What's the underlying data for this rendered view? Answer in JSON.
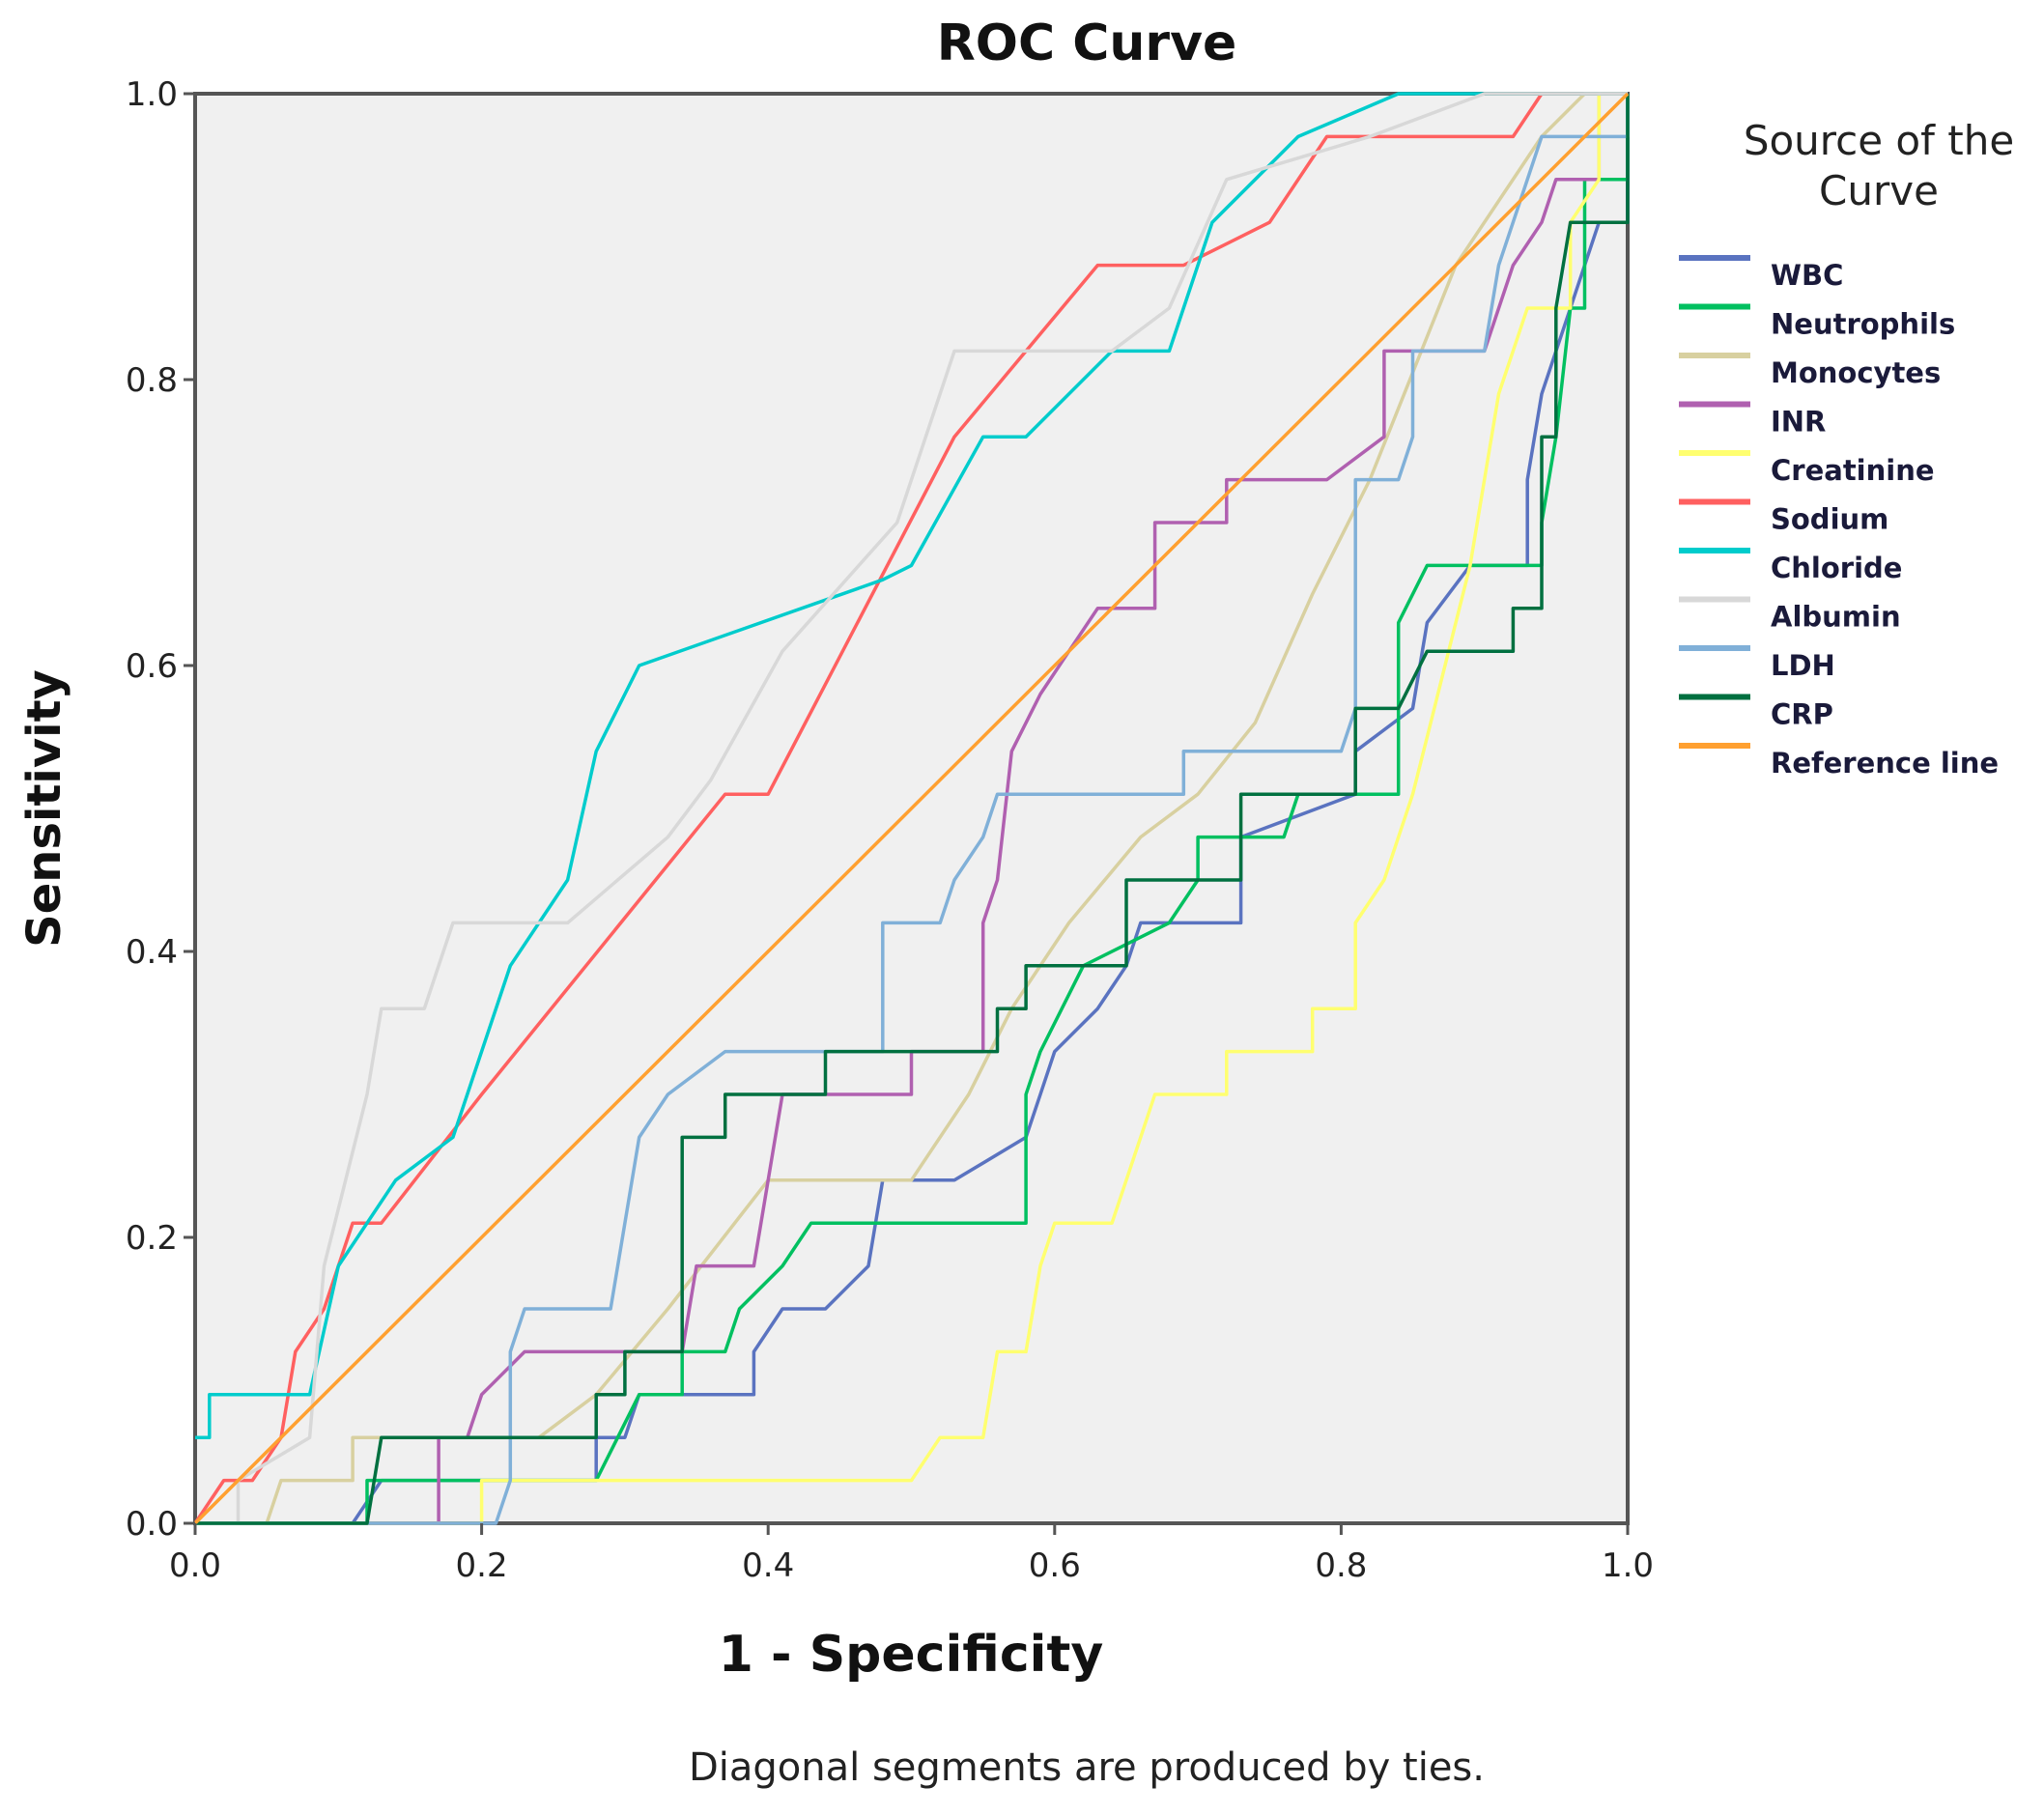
{
  "chart_data": {
    "type": "line",
    "title": "ROC Curve",
    "xlabel": "1 - Specificity",
    "ylabel": "Sensitivity",
    "xlim": [
      0,
      1
    ],
    "ylim": [
      0,
      1
    ],
    "xticks": [
      "0.0",
      "0.2",
      "0.4",
      "0.6",
      "0.8",
      "1.0"
    ],
    "yticks": [
      "0.0",
      "0.2",
      "0.4",
      "0.6",
      "0.8",
      "1.0"
    ],
    "grid": false,
    "legend_title": "Source of the Curve",
    "legend_position": "right",
    "footnote": "Diagonal segments are produced by ties.",
    "series": [
      {
        "name": "WBC",
        "color": "#5a73c0",
        "points": [
          [
            0,
            0
          ],
          [
            0.11,
            0
          ],
          [
            0.13,
            0.03
          ],
          [
            0.28,
            0.03
          ],
          [
            0.28,
            0.06
          ],
          [
            0.3,
            0.06
          ],
          [
            0.31,
            0.09
          ],
          [
            0.39,
            0.09
          ],
          [
            0.39,
            0.12
          ],
          [
            0.41,
            0.15
          ],
          [
            0.44,
            0.15
          ],
          [
            0.47,
            0.18
          ],
          [
            0.48,
            0.24
          ],
          [
            0.53,
            0.24
          ],
          [
            0.58,
            0.27
          ],
          [
            0.59,
            0.3
          ],
          [
            0.6,
            0.33
          ],
          [
            0.63,
            0.36
          ],
          [
            0.65,
            0.39
          ],
          [
            0.66,
            0.42
          ],
          [
            0.73,
            0.42
          ],
          [
            0.73,
            0.48
          ],
          [
            0.81,
            0.51
          ],
          [
            0.81,
            0.54
          ],
          [
            0.85,
            0.57
          ],
          [
            0.86,
            0.63
          ],
          [
            0.89,
            0.67
          ],
          [
            0.93,
            0.67
          ],
          [
            0.93,
            0.73
          ],
          [
            0.94,
            0.79
          ],
          [
            0.96,
            0.85
          ],
          [
            0.98,
            0.91
          ],
          [
            1,
            0.91
          ],
          [
            1,
            1
          ]
        ]
      },
      {
        "name": "Neutrophils",
        "color": "#00c060",
        "points": [
          [
            0,
            0
          ],
          [
            0.12,
            0
          ],
          [
            0.12,
            0.03
          ],
          [
            0.28,
            0.03
          ],
          [
            0.31,
            0.09
          ],
          [
            0.34,
            0.09
          ],
          [
            0.34,
            0.12
          ],
          [
            0.37,
            0.12
          ],
          [
            0.38,
            0.15
          ],
          [
            0.41,
            0.18
          ],
          [
            0.43,
            0.21
          ],
          [
            0.58,
            0.21
          ],
          [
            0.58,
            0.3
          ],
          [
            0.59,
            0.33
          ],
          [
            0.62,
            0.39
          ],
          [
            0.68,
            0.42
          ],
          [
            0.7,
            0.45
          ],
          [
            0.7,
            0.48
          ],
          [
            0.76,
            0.48
          ],
          [
            0.77,
            0.51
          ],
          [
            0.84,
            0.51
          ],
          [
            0.84,
            0.63
          ],
          [
            0.86,
            0.67
          ],
          [
            0.94,
            0.67
          ],
          [
            0.94,
            0.7
          ],
          [
            0.95,
            0.76
          ],
          [
            0.96,
            0.85
          ],
          [
            0.97,
            0.85
          ],
          [
            0.97,
            0.94
          ],
          [
            1,
            0.94
          ],
          [
            1,
            1
          ]
        ]
      },
      {
        "name": "Monocytes",
        "color": "#d8d0a0",
        "points": [
          [
            0,
            0
          ],
          [
            0.05,
            0
          ],
          [
            0.06,
            0.03
          ],
          [
            0.11,
            0.03
          ],
          [
            0.11,
            0.06
          ],
          [
            0.24,
            0.06
          ],
          [
            0.28,
            0.09
          ],
          [
            0.33,
            0.15
          ],
          [
            0.4,
            0.24
          ],
          [
            0.5,
            0.24
          ],
          [
            0.54,
            0.3
          ],
          [
            0.57,
            0.36
          ],
          [
            0.61,
            0.42
          ],
          [
            0.66,
            0.48
          ],
          [
            0.7,
            0.51
          ],
          [
            0.74,
            0.56
          ],
          [
            0.78,
            0.65
          ],
          [
            0.82,
            0.73
          ],
          [
            0.88,
            0.88
          ],
          [
            0.94,
            0.97
          ],
          [
            0.97,
            1
          ],
          [
            1,
            1
          ]
        ]
      },
      {
        "name": "INR",
        "color": "#b060b0",
        "points": [
          [
            0,
            0
          ],
          [
            0.17,
            0
          ],
          [
            0.17,
            0.06
          ],
          [
            0.19,
            0.06
          ],
          [
            0.2,
            0.09
          ],
          [
            0.23,
            0.12
          ],
          [
            0.34,
            0.12
          ],
          [
            0.35,
            0.18
          ],
          [
            0.39,
            0.18
          ],
          [
            0.4,
            0.24
          ],
          [
            0.41,
            0.3
          ],
          [
            0.5,
            0.3
          ],
          [
            0.5,
            0.33
          ],
          [
            0.55,
            0.33
          ],
          [
            0.55,
            0.42
          ],
          [
            0.56,
            0.45
          ],
          [
            0.57,
            0.54
          ],
          [
            0.59,
            0.58
          ],
          [
            0.61,
            0.61
          ],
          [
            0.63,
            0.64
          ],
          [
            0.67,
            0.64
          ],
          [
            0.67,
            0.7
          ],
          [
            0.72,
            0.7
          ],
          [
            0.72,
            0.73
          ],
          [
            0.79,
            0.73
          ],
          [
            0.83,
            0.76
          ],
          [
            0.83,
            0.82
          ],
          [
            0.9,
            0.82
          ],
          [
            0.92,
            0.88
          ],
          [
            0.94,
            0.91
          ],
          [
            0.95,
            0.94
          ],
          [
            0.98,
            0.94
          ],
          [
            0.98,
            1
          ],
          [
            1,
            1
          ]
        ]
      },
      {
        "name": "Creatinine",
        "color": "#ffff70",
        "points": [
          [
            0,
            0
          ],
          [
            0.2,
            0
          ],
          [
            0.2,
            0.03
          ],
          [
            0.5,
            0.03
          ],
          [
            0.52,
            0.06
          ],
          [
            0.55,
            0.06
          ],
          [
            0.56,
            0.12
          ],
          [
            0.58,
            0.12
          ],
          [
            0.59,
            0.18
          ],
          [
            0.6,
            0.21
          ],
          [
            0.64,
            0.21
          ],
          [
            0.66,
            0.27
          ],
          [
            0.67,
            0.3
          ],
          [
            0.72,
            0.3
          ],
          [
            0.72,
            0.33
          ],
          [
            0.78,
            0.33
          ],
          [
            0.78,
            0.36
          ],
          [
            0.81,
            0.36
          ],
          [
            0.81,
            0.42
          ],
          [
            0.83,
            0.45
          ],
          [
            0.85,
            0.51
          ],
          [
            0.86,
            0.55
          ],
          [
            0.89,
            0.67
          ],
          [
            0.9,
            0.73
          ],
          [
            0.91,
            0.79
          ],
          [
            0.93,
            0.85
          ],
          [
            0.96,
            0.85
          ],
          [
            0.96,
            0.91
          ],
          [
            0.98,
            0.94
          ],
          [
            0.98,
            1
          ],
          [
            1,
            1
          ]
        ]
      },
      {
        "name": "Sodium",
        "color": "#ff6060",
        "points": [
          [
            0,
            0
          ],
          [
            0.02,
            0.03
          ],
          [
            0.04,
            0.03
          ],
          [
            0.06,
            0.06
          ],
          [
            0.07,
            0.12
          ],
          [
            0.09,
            0.15
          ],
          [
            0.11,
            0.21
          ],
          [
            0.13,
            0.21
          ],
          [
            0.2,
            0.3
          ],
          [
            0.37,
            0.51
          ],
          [
            0.4,
            0.51
          ],
          [
            0.53,
            0.76
          ],
          [
            0.63,
            0.88
          ],
          [
            0.69,
            0.88
          ],
          [
            0.75,
            0.91
          ],
          [
            0.79,
            0.97
          ],
          [
            0.92,
            0.97
          ],
          [
            0.94,
            1
          ],
          [
            1,
            1
          ]
        ]
      },
      {
        "name": "Chloride",
        "color": "#00cccc",
        "points": [
          [
            0,
            0.06
          ],
          [
            0.01,
            0.06
          ],
          [
            0.01,
            0.09
          ],
          [
            0.08,
            0.09
          ],
          [
            0.1,
            0.18
          ],
          [
            0.12,
            0.21
          ],
          [
            0.14,
            0.24
          ],
          [
            0.18,
            0.27
          ],
          [
            0.2,
            0.33
          ],
          [
            0.22,
            0.39
          ],
          [
            0.26,
            0.45
          ],
          [
            0.28,
            0.54
          ],
          [
            0.3,
            0.58
          ],
          [
            0.31,
            0.6
          ],
          [
            0.48,
            0.66
          ],
          [
            0.5,
            0.67
          ],
          [
            0.55,
            0.76
          ],
          [
            0.58,
            0.76
          ],
          [
            0.64,
            0.82
          ],
          [
            0.68,
            0.82
          ],
          [
            0.71,
            0.91
          ],
          [
            0.77,
            0.97
          ],
          [
            0.84,
            1
          ],
          [
            1,
            1
          ]
        ]
      },
      {
        "name": "Albumin",
        "color": "#d8d8d8",
        "points": [
          [
            0,
            0
          ],
          [
            0.03,
            0
          ],
          [
            0.03,
            0.03
          ],
          [
            0.08,
            0.06
          ],
          [
            0.09,
            0.18
          ],
          [
            0.12,
            0.3
          ],
          [
            0.13,
            0.36
          ],
          [
            0.16,
            0.36
          ],
          [
            0.18,
            0.42
          ],
          [
            0.26,
            0.42
          ],
          [
            0.33,
            0.48
          ],
          [
            0.36,
            0.52
          ],
          [
            0.41,
            0.61
          ],
          [
            0.49,
            0.7
          ],
          [
            0.53,
            0.82
          ],
          [
            0.64,
            0.82
          ],
          [
            0.68,
            0.85
          ],
          [
            0.72,
            0.94
          ],
          [
            0.82,
            0.97
          ],
          [
            0.9,
            1
          ],
          [
            1,
            1
          ]
        ]
      },
      {
        "name": "LDH",
        "color": "#80b0d8",
        "points": [
          [
            0,
            0
          ],
          [
            0.21,
            0
          ],
          [
            0.22,
            0.03
          ],
          [
            0.22,
            0.12
          ],
          [
            0.23,
            0.15
          ],
          [
            0.29,
            0.15
          ],
          [
            0.3,
            0.21
          ],
          [
            0.31,
            0.27
          ],
          [
            0.33,
            0.3
          ],
          [
            0.37,
            0.33
          ],
          [
            0.48,
            0.33
          ],
          [
            0.48,
            0.42
          ],
          [
            0.52,
            0.42
          ],
          [
            0.53,
            0.45
          ],
          [
            0.55,
            0.48
          ],
          [
            0.56,
            0.51
          ],
          [
            0.69,
            0.51
          ],
          [
            0.69,
            0.54
          ],
          [
            0.8,
            0.54
          ],
          [
            0.81,
            0.57
          ],
          [
            0.81,
            0.73
          ],
          [
            0.84,
            0.73
          ],
          [
            0.85,
            0.76
          ],
          [
            0.85,
            0.82
          ],
          [
            0.9,
            0.82
          ],
          [
            0.91,
            0.88
          ],
          [
            0.93,
            0.94
          ],
          [
            0.94,
            0.97
          ],
          [
            1,
            0.97
          ],
          [
            1,
            1
          ]
        ]
      },
      {
        "name": "CRP",
        "color": "#007040",
        "points": [
          [
            0,
            0
          ],
          [
            0.12,
            0
          ],
          [
            0.13,
            0.06
          ],
          [
            0.28,
            0.06
          ],
          [
            0.28,
            0.09
          ],
          [
            0.3,
            0.09
          ],
          [
            0.3,
            0.12
          ],
          [
            0.34,
            0.12
          ],
          [
            0.34,
            0.27
          ],
          [
            0.37,
            0.27
          ],
          [
            0.37,
            0.3
          ],
          [
            0.44,
            0.3
          ],
          [
            0.44,
            0.33
          ],
          [
            0.56,
            0.33
          ],
          [
            0.56,
            0.36
          ],
          [
            0.58,
            0.36
          ],
          [
            0.58,
            0.39
          ],
          [
            0.65,
            0.39
          ],
          [
            0.65,
            0.45
          ],
          [
            0.73,
            0.45
          ],
          [
            0.73,
            0.51
          ],
          [
            0.81,
            0.51
          ],
          [
            0.81,
            0.57
          ],
          [
            0.84,
            0.57
          ],
          [
            0.86,
            0.61
          ],
          [
            0.92,
            0.61
          ],
          [
            0.92,
            0.64
          ],
          [
            0.94,
            0.64
          ],
          [
            0.94,
            0.76
          ],
          [
            0.95,
            0.76
          ],
          [
            0.95,
            0.85
          ],
          [
            0.96,
            0.91
          ],
          [
            1,
            0.91
          ],
          [
            1,
            1
          ]
        ]
      },
      {
        "name": "Reference line",
        "color": "#ffa030",
        "points": [
          [
            0,
            0
          ],
          [
            1,
            1
          ]
        ]
      }
    ]
  }
}
